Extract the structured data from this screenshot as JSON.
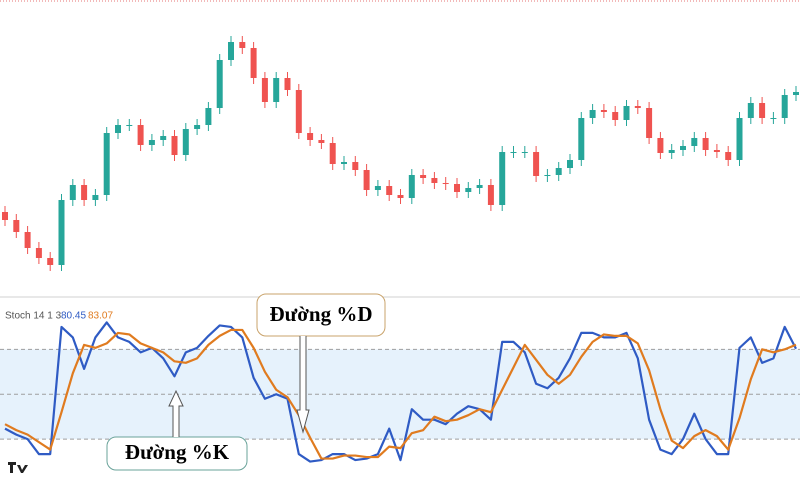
{
  "chart_data": [
    {
      "type": "candlestick",
      "up_color": "#26a69a",
      "down_color": "#ef5350",
      "ylim": [
        0,
        300
      ],
      "open": [
        88,
        80,
        68,
        52,
        42,
        35,
        100,
        115,
        100,
        105,
        167,
        175,
        175,
        155,
        160,
        164,
        145,
        171,
        175,
        192,
        240,
        258,
        252,
        222,
        198,
        222,
        210,
        167,
        160,
        157,
        136,
        138,
        130,
        110,
        114,
        105,
        102,
        125,
        122,
        117,
        116,
        108,
        112,
        115,
        95,
        148,
        148,
        148,
        124,
        125,
        132,
        140,
        182,
        190,
        188,
        180,
        194,
        192,
        162,
        147,
        150,
        154,
        162,
        150,
        148,
        140,
        182,
        197,
        182,
        182,
        205
      ],
      "high": [
        94,
        86,
        74,
        58,
        48,
        106,
        121,
        121,
        111,
        173,
        181,
        181,
        181,
        166,
        170,
        170,
        177,
        181,
        198,
        246,
        264,
        264,
        258,
        228,
        228,
        228,
        216,
        173,
        166,
        163,
        144,
        144,
        136,
        120,
        120,
        111,
        131,
        131,
        128,
        123,
        122,
        118,
        121,
        121,
        154,
        154,
        154,
        154,
        131,
        138,
        146,
        188,
        196,
        196,
        194,
        200,
        200,
        198,
        168,
        156,
        160,
        168,
        168,
        156,
        154,
        188,
        203,
        203,
        188,
        211,
        214
      ],
      "low": [
        74,
        62,
        46,
        36,
        29,
        29,
        94,
        94,
        94,
        99,
        161,
        169,
        149,
        149,
        154,
        139,
        139,
        165,
        169,
        186,
        234,
        246,
        216,
        192,
        192,
        204,
        161,
        154,
        151,
        130,
        130,
        124,
        104,
        104,
        99,
        96,
        96,
        116,
        111,
        110,
        102,
        102,
        106,
        89,
        89,
        142,
        142,
        118,
        118,
        119,
        126,
        134,
        176,
        182,
        174,
        174,
        186,
        156,
        141,
        141,
        144,
        148,
        144,
        142,
        134,
        134,
        176,
        176,
        176,
        176,
        199
      ],
      "close": [
        80,
        68,
        52,
        42,
        35,
        100,
        115,
        100,
        105,
        167,
        175,
        175,
        155,
        160,
        164,
        145,
        171,
        175,
        192,
        240,
        258,
        252,
        222,
        198,
        222,
        210,
        167,
        160,
        157,
        136,
        138,
        130,
        110,
        114,
        105,
        102,
        125,
        122,
        117,
        116,
        108,
        112,
        115,
        95,
        148,
        148,
        148,
        124,
        125,
        132,
        140,
        182,
        190,
        188,
        180,
        194,
        192,
        162,
        147,
        150,
        154,
        162,
        150,
        148,
        140,
        182,
        197,
        182,
        182,
        205,
        208
      ]
    },
    {
      "type": "line",
      "title": "Stoch 14 1 3",
      "ylim": [
        -12,
        113
      ],
      "levels": [
        20,
        50,
        80
      ],
      "band_color": "#e6f2fc",
      "series": [
        {
          "color": "#2f5bc4",
          "values": [
            27,
            23,
            20,
            10,
            10,
            95,
            88,
            67,
            88,
            98,
            88,
            85,
            78,
            81,
            74,
            62,
            78,
            81,
            89,
            96,
            95,
            88,
            61,
            47,
            50,
            47,
            10,
            5,
            6,
            10,
            10,
            6,
            7,
            10,
            27,
            6,
            40,
            33,
            33,
            30,
            37,
            42,
            40,
            33,
            85,
            85,
            78,
            57,
            54,
            61,
            74,
            91,
            91,
            88,
            88,
            91,
            74,
            33,
            13,
            10,
            20,
            37,
            20,
            10,
            10,
            81,
            88,
            71,
            74,
            95,
            80.45
          ]
        },
        {
          "color": "#e07b1f",
          "values": [
            30,
            26,
            23,
            18,
            13,
            38,
            64,
            83,
            81,
            84,
            91,
            90,
            84,
            81,
            78,
            72,
            71,
            74,
            83,
            89,
            93,
            93,
            81,
            65,
            53,
            48,
            36,
            21,
            7,
            7,
            9,
            9,
            8,
            8,
            15,
            14,
            24,
            26,
            35,
            32,
            33,
            36,
            40,
            38,
            53,
            68,
            83,
            73,
            63,
            57,
            63,
            75,
            85,
            90,
            89,
            89,
            84,
            66,
            40,
            19,
            14,
            22,
            26,
            22,
            13,
            34,
            60,
            80,
            78,
            80,
            83.07
          ]
        }
      ],
      "annotations": [
        {
          "text": "Đường %D"
        },
        {
          "text": "Đường %K"
        }
      ]
    }
  ]
}
